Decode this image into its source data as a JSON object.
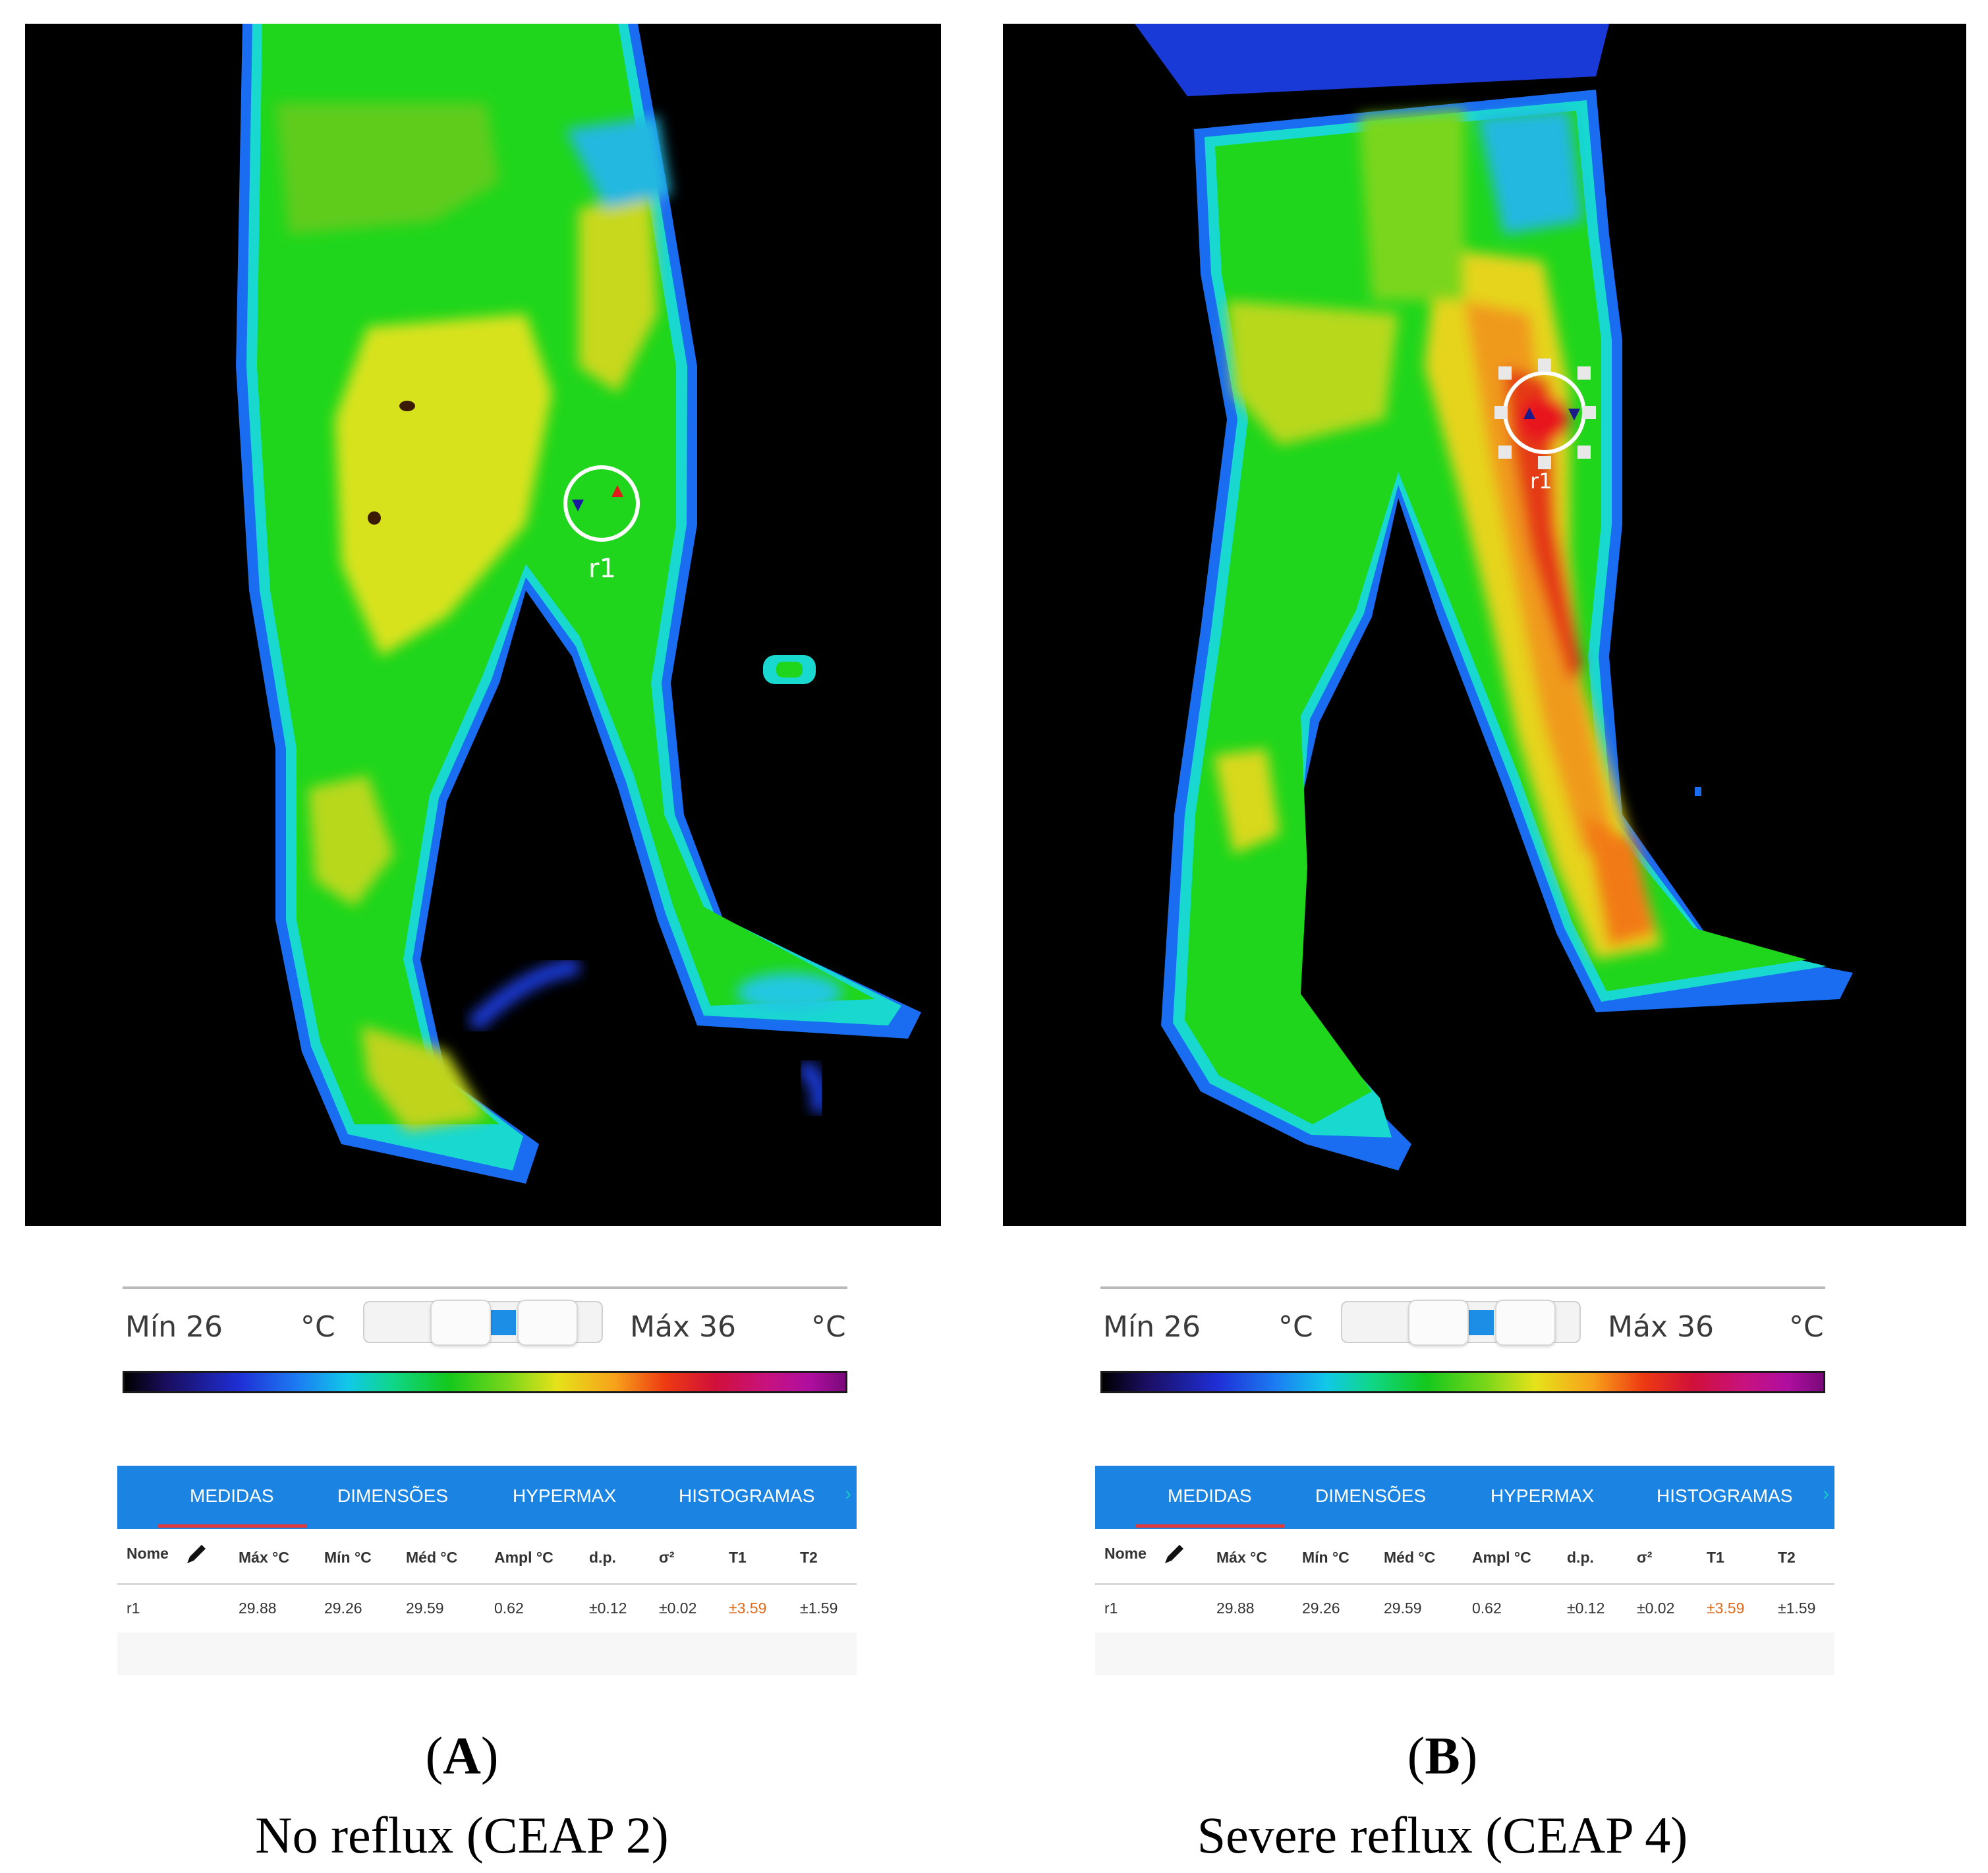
{
  "panels": [
    {
      "id": "A",
      "caption_letter": "A",
      "caption_text": "No reflux (CEAP 2)",
      "roi_label": "r1",
      "scale": {
        "min_label": "Mín 26",
        "unit": "°C",
        "max_label": "Máx 36"
      },
      "tabs": [
        "MEDIDAS",
        "DIMENSÕES",
        "HYPERMAX",
        "HISTOGRAMAS"
      ],
      "active_tab": "MEDIDAS",
      "table": {
        "headers": [
          "Nome",
          "Máx °C",
          "Mín °C",
          "Méd °C",
          "Ampl °C",
          "d.p.",
          "σ²",
          "T1",
          "T2"
        ],
        "row": [
          "r1",
          "29.88",
          "29.26",
          "29.59",
          "0.62",
          "±0.12",
          "±0.02",
          "±3.59",
          "±1.59"
        ]
      }
    },
    {
      "id": "B",
      "caption_letter": "B",
      "caption_text": "Severe reflux (CEAP 4)",
      "roi_label": "r1",
      "scale": {
        "min_label": "Mín 26",
        "unit": "°C",
        "max_label": "Máx 36"
      },
      "tabs": [
        "MEDIDAS",
        "DIMENSÕES",
        "HYPERMAX",
        "HISTOGRAMAS"
      ],
      "active_tab": "MEDIDAS",
      "table": {
        "headers": [
          "Nome",
          "Máx °C",
          "Mín °C",
          "Méd °C",
          "Ampl °C",
          "d.p.",
          "σ²",
          "T1",
          "T2"
        ],
        "row": [
          "r1",
          "29.88",
          "29.26",
          "29.59",
          "0.62",
          "±0.12",
          "±0.02",
          "±3.59",
          "±1.59"
        ]
      }
    }
  ],
  "colors": {
    "tab_bar": "#1b84e2",
    "active_tab_underline": "#e23a3a",
    "highlight_value": "#e06a1a",
    "slider_range": "#1c8ee6"
  }
}
